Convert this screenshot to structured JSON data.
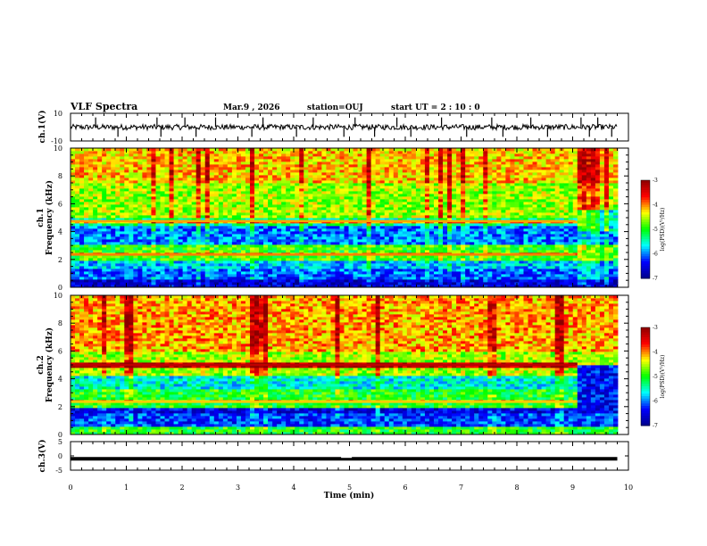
{
  "header": {
    "title": "VLF Spectra",
    "date": "Mar.9  , 2026",
    "station": "station=OUJ",
    "start_ut": "start  UT  =   2  : 10 : 0"
  },
  "colors": {
    "dark_blue": "#00008b",
    "blue": "#0000ff",
    "cyan": "#00ffff",
    "green": "#00ff00",
    "yellow": "#ffff00",
    "red": "#ff0000",
    "dark_red": "#8b0000"
  },
  "chart_data": [
    {
      "type": "line",
      "name": "ch1-waveform",
      "ylabel": "ch.1(V)",
      "ylim": [
        -10,
        10
      ],
      "y_tick_labels": [
        "10",
        "-10"
      ],
      "xlim": [
        0,
        10
      ],
      "baseline": 0,
      "spike_times": [
        0.45,
        0.85,
        1.55,
        1.62,
        2.05,
        2.25,
        2.6,
        3.25,
        3.45,
        4.05,
        4.35,
        4.9,
        5.1,
        5.45,
        5.85,
        6.1,
        6.65,
        7.1,
        7.55,
        7.75,
        8.25,
        8.55,
        9.15,
        9.3,
        9.45,
        9.7
      ]
    },
    {
      "type": "heatmap",
      "name": "ch1-spectrogram",
      "ylabel_lines": [
        "ch.1",
        "Frequency  (kHz)"
      ],
      "ylim": [
        0,
        10
      ],
      "y_tick_labels": [
        "0",
        "2",
        "4",
        "6",
        "8",
        "10"
      ],
      "xlim": [
        0,
        10
      ],
      "colorbar": {
        "label": "log(PSD)(V²/Hz)",
        "range": [
          -7,
          -3
        ],
        "ticks": [
          "-3",
          "-4",
          "-5",
          "-6",
          "-7"
        ]
      },
      "bands": [
        {
          "f_lo": 0.0,
          "f_hi": 0.5,
          "level": -6.6
        },
        {
          "f_lo": 0.5,
          "f_hi": 1.4,
          "level": -6.1
        },
        {
          "f_lo": 1.4,
          "f_hi": 2.0,
          "level": -5.8
        },
        {
          "f_lo": 2.0,
          "f_hi": 3.0,
          "level": -4.9
        },
        {
          "f_lo": 3.0,
          "f_hi": 4.4,
          "level": -6.0
        },
        {
          "f_lo": 4.4,
          "f_hi": 5.0,
          "level": -5.4
        },
        {
          "f_lo": 5.0,
          "f_hi": 7.5,
          "level": -4.6
        },
        {
          "f_lo": 7.5,
          "f_hi": 10.0,
          "level": -4.2
        }
      ],
      "lines": [
        {
          "freq": 2.35,
          "level": -4.0
        },
        {
          "freq": 4.75,
          "level": -4.1
        }
      ],
      "late_change": {
        "time": 9.05,
        "f_lo": 4.0,
        "f_hi": 5.5,
        "level": -5.6
      }
    },
    {
      "type": "heatmap",
      "name": "ch2-spectrogram",
      "ylabel_lines": [
        "ch.2",
        "Frequency  (kHz)"
      ],
      "ylim": [
        0,
        10
      ],
      "y_tick_labels": [
        "0",
        "2",
        "4",
        "6",
        "8",
        "10"
      ],
      "xlim": [
        0,
        10
      ],
      "colorbar": {
        "label": "log(PSD)(V²/Hz)",
        "range": [
          -7,
          -3
        ],
        "ticks": [
          "-3",
          "-4",
          "-5",
          "-6",
          "-7"
        ]
      },
      "bands": [
        {
          "f_lo": 0.0,
          "f_hi": 0.6,
          "level": -5.0
        },
        {
          "f_lo": 0.6,
          "f_hi": 1.6,
          "level": -6.2
        },
        {
          "f_lo": 1.6,
          "f_hi": 2.0,
          "level": -6.5
        },
        {
          "f_lo": 2.0,
          "f_hi": 3.2,
          "level": -5.0
        },
        {
          "f_lo": 3.2,
          "f_hi": 4.2,
          "level": -5.6
        },
        {
          "f_lo": 4.2,
          "f_hi": 6.0,
          "level": -4.6
        },
        {
          "f_lo": 6.0,
          "f_hi": 10.0,
          "level": -4.1
        }
      ],
      "lines": [
        {
          "freq": 2.35,
          "level": -4.2
        },
        {
          "freq": 5.0,
          "level": -3.3
        }
      ],
      "late_change": {
        "time": 9.05,
        "f_lo": 2.0,
        "f_hi": 5.0,
        "level": -6.4
      }
    },
    {
      "type": "line",
      "name": "ch3-waveform",
      "ylabel": "ch.3(V)",
      "ylim": [
        -5,
        5
      ],
      "y_tick_labels": [
        "5",
        "0",
        "-5"
      ],
      "xlim": [
        0,
        10
      ],
      "level": -1.0
    }
  ],
  "x_axis": {
    "label": "Time  (min)",
    "tick_labels": [
      "0",
      "1",
      "2",
      "3",
      "4",
      "5",
      "6",
      "7",
      "8",
      "9",
      "10"
    ]
  }
}
